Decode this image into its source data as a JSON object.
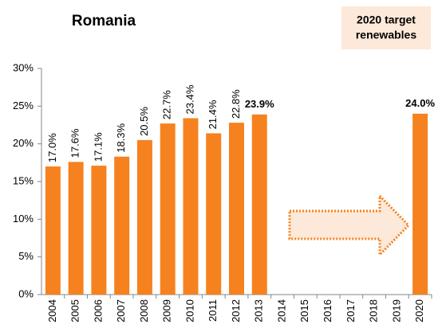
{
  "chart_data": {
    "type": "bar",
    "title": "Romania",
    "annotation": [
      "2020 target",
      "renewables"
    ],
    "categories": [
      "2004",
      "2005",
      "2006",
      "2007",
      "2008",
      "2009",
      "2010",
      "2011",
      "2012",
      "2013",
      "2014",
      "2015",
      "2016",
      "2017",
      "2018",
      "2019",
      "2020"
    ],
    "values": [
      17.0,
      17.6,
      17.1,
      18.3,
      20.5,
      22.7,
      23.4,
      21.4,
      22.8,
      23.9,
      null,
      null,
      null,
      null,
      null,
      null,
      24.0
    ],
    "value_labels": [
      "17.0%",
      "17.6%",
      "17.1%",
      "18.3%",
      "20.5%",
      "22.7%",
      "23.4%",
      "21.4%",
      "22.8%",
      "23.9%",
      null,
      null,
      null,
      null,
      null,
      null,
      "24.0%"
    ],
    "color": "#f5821f",
    "ylim": [
      0,
      30
    ],
    "yticks": [
      {
        "value": 0,
        "label": "0%"
      },
      {
        "value": 5,
        "label": "5%"
      },
      {
        "value": 10,
        "label": "10%"
      },
      {
        "value": 15,
        "label": "15%"
      },
      {
        "value": 20,
        "label": "20%"
      },
      {
        "value": 25,
        "label": "25%"
      },
      {
        "value": 30,
        "label": "30%"
      }
    ],
    "grid": false
  }
}
